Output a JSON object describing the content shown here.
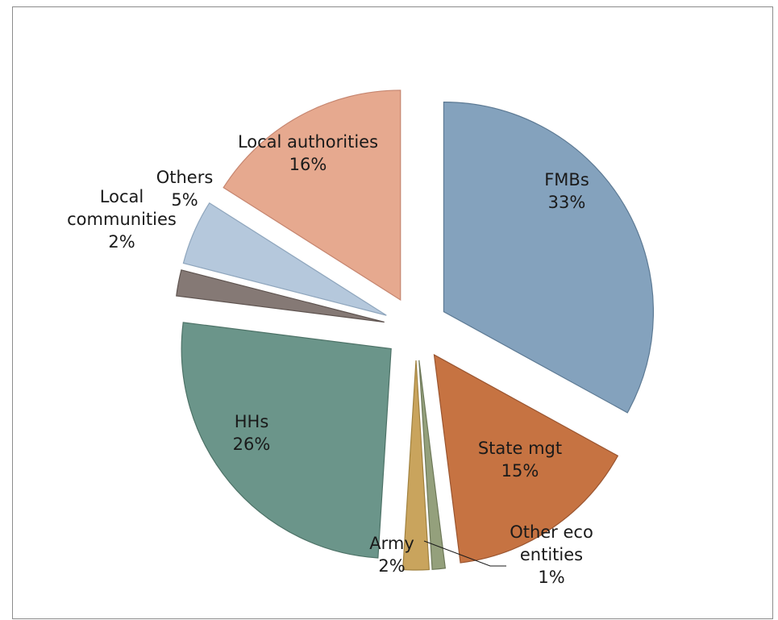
{
  "chart_data": {
    "type": "pie",
    "title": "",
    "slices": [
      {
        "name": "FMBs",
        "label": "33%",
        "value": 33,
        "color": "#84a2bd",
        "stroke": "#5d7a94"
      },
      {
        "name": "State mgt",
        "label": "15%",
        "value": 15,
        "color": "#c67342",
        "stroke": "#9a5530"
      },
      {
        "name": "Other eco entities",
        "label": "1%",
        "value": 1,
        "color": "#94a07c",
        "stroke": "#6d7858"
      },
      {
        "name": "Army",
        "label": "2%",
        "value": 2,
        "color": "#c9a45d",
        "stroke": "#a0813e"
      },
      {
        "name": "HHs",
        "label": "26%",
        "value": 26,
        "color": "#6b958a",
        "stroke": "#4d7267"
      },
      {
        "name": "Local communities",
        "label": "2%",
        "value": 2,
        "color": "#857975",
        "stroke": "#5f5450"
      },
      {
        "name": "Others",
        "label": "5%",
        "value": 5,
        "color": "#b5c8dc",
        "stroke": "#8fa6bd"
      },
      {
        "name": "Local authorities",
        "label": "16%",
        "value": 16,
        "color": "#e6a98f",
        "stroke": "#c68670"
      }
    ],
    "legend": "none",
    "data_labels": "category-name-and-percent"
  }
}
